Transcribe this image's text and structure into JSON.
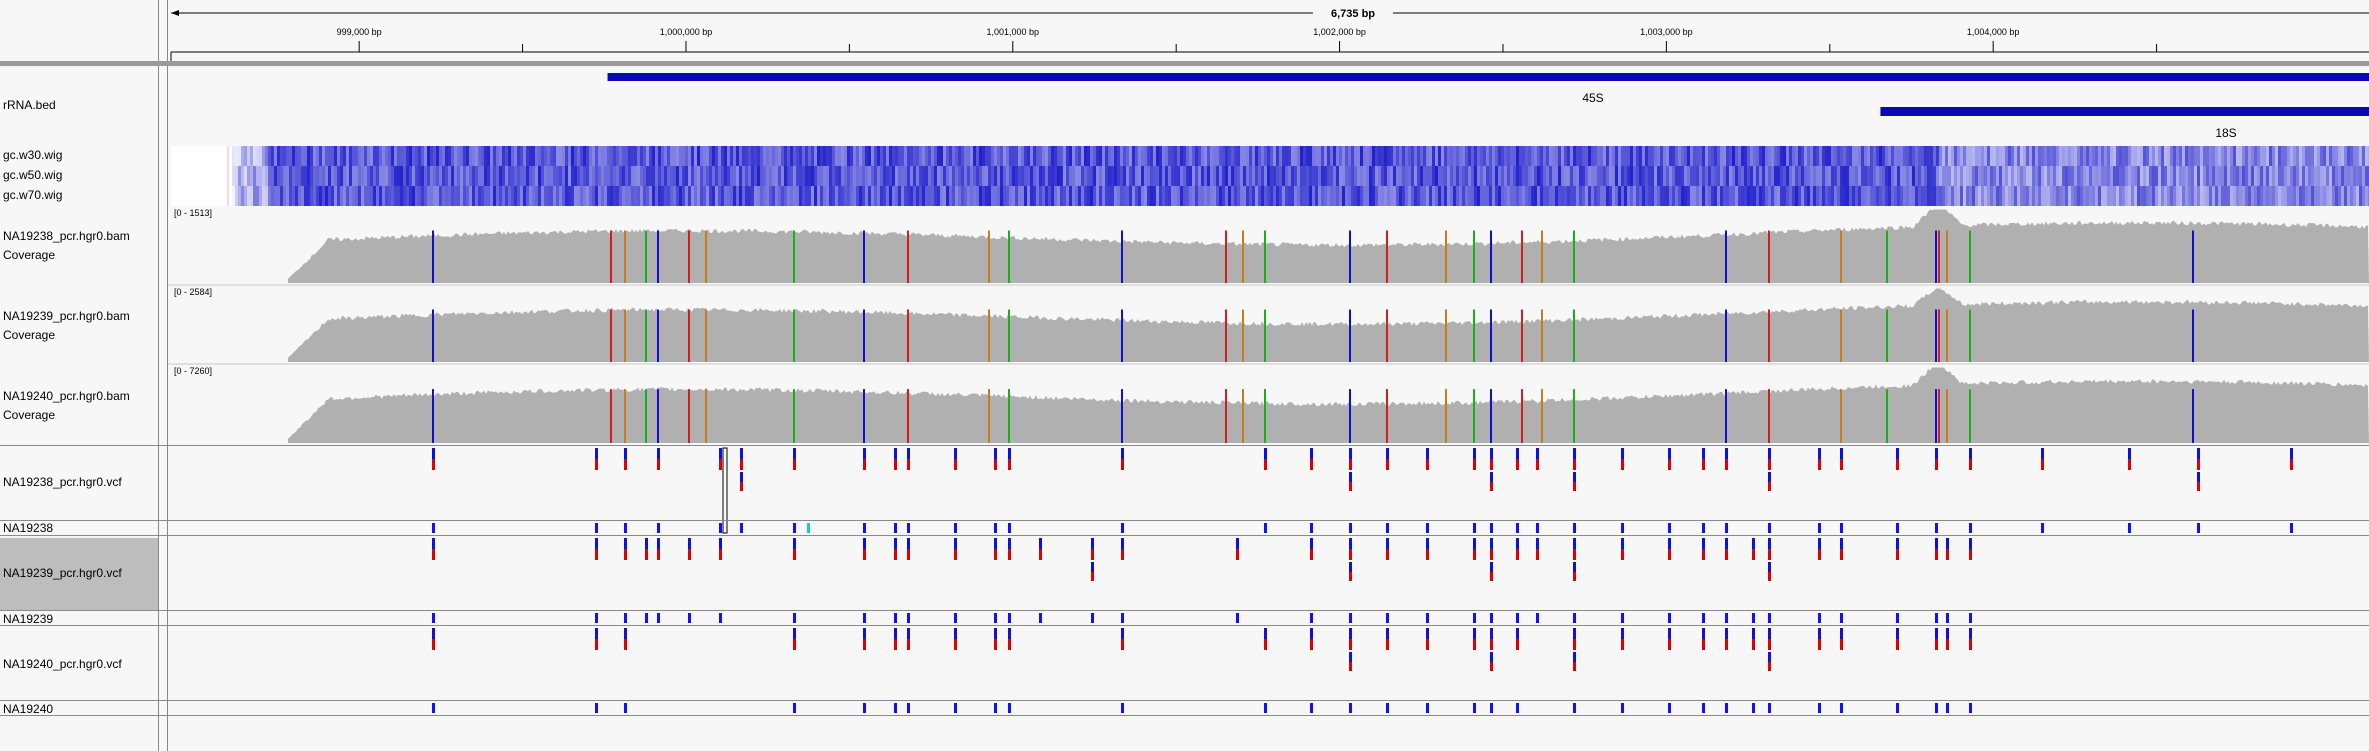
{
  "ruler": {
    "span_label": "6,735 bp",
    "ticks": [
      {
        "label": "999,000 bp",
        "value": 999000
      },
      {
        "label": "1,000,000 bp",
        "value": 1000000
      },
      {
        "label": "1,001,000 bp",
        "value": 1001000
      },
      {
        "label": "1,002,000 bp",
        "value": 1002000
      },
      {
        "label": "1,003,000 bp",
        "value": 1003000
      },
      {
        "label": "1,004,000 bp",
        "value": 1004000
      }
    ],
    "view_start": 998415,
    "view_end": 1005150
  },
  "tracks": {
    "rrna_bed": "rRNA.bed",
    "gc_w30": "gc.w30.wig",
    "gc_w50": "gc.w50.wig",
    "gc_w70": "gc.w70.wig",
    "cov_238": "NA19238_pcr.hgr0.bam Coverage",
    "cov_239": "NA19239_pcr.hgr0.bam Coverage",
    "cov_240": "NA19240_pcr.hgr0.bam Coverage",
    "vcf_238": "NA19238_pcr.hgr0.vcf",
    "sample_238": "NA19238",
    "vcf_239": "NA19239_pcr.hgr0.vcf",
    "sample_239": "NA19239",
    "vcf_240": "NA19240_pcr.hgr0.vcf",
    "sample_240": "NA19240"
  },
  "features": {
    "f45s": {
      "label": "45S",
      "start": 999760,
      "end": 1005150
    },
    "f18s": {
      "label": "18S",
      "start": 1003655,
      "end": 1005150
    }
  },
  "coverage_ranges": {
    "cov_238": "[0 - 1513]",
    "cov_239": "[0 - 2584]",
    "cov_240": "[0 - 7260]"
  },
  "colors": {
    "feature": "#0a0ab4",
    "coverage": "#b0b0b0",
    "snp_A": "#1ab01a",
    "snp_C": "#1010c8",
    "snp_G": "#c87a1e",
    "snp_T": "#d21e1e",
    "variant_alt": "#e00000",
    "variant_ref": "#1010d8",
    "genotype_het": "#1010ff",
    "genotype_homvar": "#00d8d8",
    "selected_track": "#bdbdbd"
  }
}
